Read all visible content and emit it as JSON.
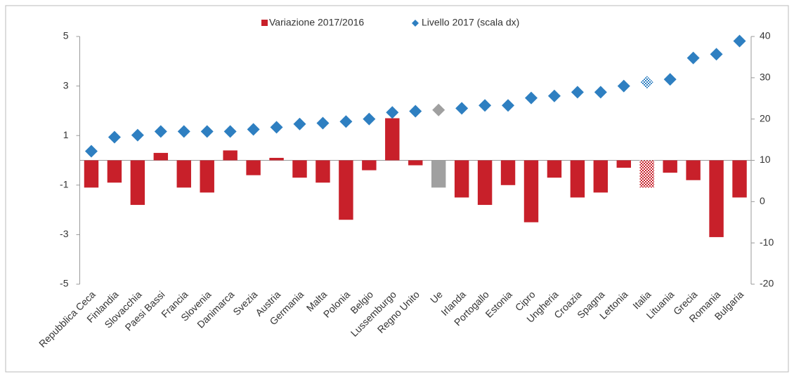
{
  "chart_data": {
    "type": "bar-diamond",
    "categories": [
      "Repubblica Ceca",
      "Finlandia",
      "Slovacchia",
      "Paesi Bassi",
      "Francia",
      "Slovenia",
      "Danimarca",
      "Svezia",
      "Austria",
      "Germania",
      "Malta",
      "Polonia",
      "Belgio",
      "Lussemburgo",
      "Regno Unito",
      "Ue",
      "Irlanda",
      "Portogallo",
      "Estonia",
      "Cipro",
      "Ungheria",
      "Croazia",
      "Spagna",
      "Lettonia",
      "Italia",
      "Lituania",
      "Grecia",
      "Romania",
      "Bulgaria"
    ],
    "series": [
      {
        "name": "Variazione 2017/2016",
        "color": "#c8202a",
        "type": "bar",
        "values": [
          -1.1,
          -0.9,
          -1.8,
          0.3,
          -1.1,
          -1.3,
          0.4,
          -0.6,
          0.1,
          -0.7,
          -0.9,
          -2.4,
          -0.4,
          1.7,
          -0.2,
          -1.1,
          -1.5,
          -1.8,
          -1.0,
          -2.5,
          -0.7,
          -1.5,
          -1.3,
          -0.3,
          -1.1,
          -0.5,
          -0.8,
          -3.1,
          -1.5
        ]
      },
      {
        "name": "Livello 2017 (scala dx)",
        "color": "#2e7fc1",
        "type": "diamond",
        "axis": "y2",
        "values": [
          12.2,
          15.6,
          16.1,
          17.0,
          17.0,
          17.0,
          17.0,
          17.5,
          18.0,
          18.8,
          19.0,
          19.4,
          20.0,
          21.6,
          21.9,
          22.2,
          22.6,
          23.3,
          23.3,
          25.1,
          25.6,
          26.5,
          26.5,
          28.0,
          28.9,
          29.6,
          34.8,
          35.7,
          38.9
        ]
      }
    ],
    "highlight_color": "#a0a0a0",
    "highlight": [
      15
    ],
    "hatched": [
      24
    ],
    "ylim": [
      -5,
      5
    ],
    "yticks": [
      -5,
      -3,
      -1,
      1,
      3,
      5
    ],
    "y2lim": [
      -20,
      40
    ],
    "y2ticks": [
      -20,
      -10,
      0,
      10,
      20,
      30,
      40
    ],
    "legend": "top"
  }
}
